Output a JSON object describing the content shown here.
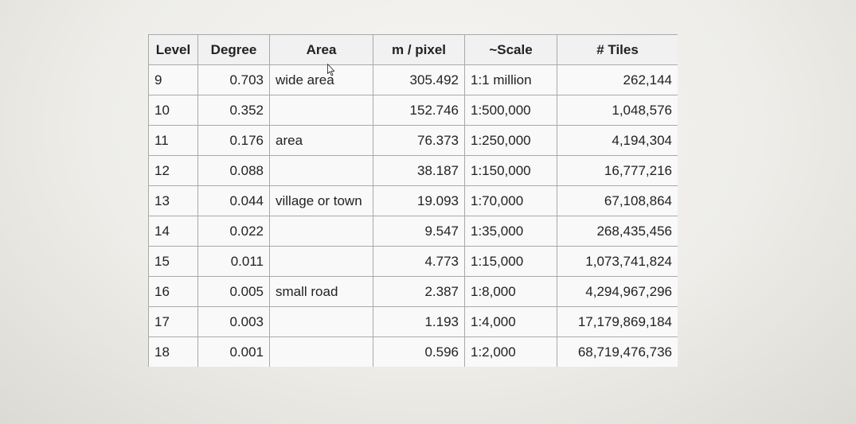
{
  "table": {
    "headers": {
      "level": "Level",
      "degree": "Degree",
      "area": "Area",
      "m_per_pixel": "m / pixel",
      "scale": "~Scale",
      "tiles": "# Tiles"
    },
    "rows": [
      {
        "level": "9",
        "degree": "0.703",
        "area": "wide area",
        "m_per_pixel": "305.492",
        "scale": "1:1 million",
        "tiles": "262,144"
      },
      {
        "level": "10",
        "degree": "0.352",
        "area": "",
        "m_per_pixel": "152.746",
        "scale": "1:500,000",
        "tiles": "1,048,576"
      },
      {
        "level": "11",
        "degree": "0.176",
        "area": "area",
        "m_per_pixel": "76.373",
        "scale": "1:250,000",
        "tiles": "4,194,304"
      },
      {
        "level": "12",
        "degree": "0.088",
        "area": "",
        "m_per_pixel": "38.187",
        "scale": "1:150,000",
        "tiles": "16,777,216"
      },
      {
        "level": "13",
        "degree": "0.044",
        "area": "village or town",
        "m_per_pixel": "19.093",
        "scale": "1:70,000",
        "tiles": "67,108,864"
      },
      {
        "level": "14",
        "degree": "0.022",
        "area": "",
        "m_per_pixel": "9.547",
        "scale": "1:35,000",
        "tiles": "268,435,456"
      },
      {
        "level": "15",
        "degree": "0.011",
        "area": "",
        "m_per_pixel": "4.773",
        "scale": "1:15,000",
        "tiles": "1,073,741,824"
      },
      {
        "level": "16",
        "degree": "0.005",
        "area": "small road",
        "m_per_pixel": "2.387",
        "scale": "1:8,000",
        "tiles": "4,294,967,296"
      },
      {
        "level": "17",
        "degree": "0.003",
        "area": "",
        "m_per_pixel": "1.193",
        "scale": "1:4,000",
        "tiles": "17,179,869,184"
      },
      {
        "level": "18",
        "degree": "0.001",
        "area": "",
        "m_per_pixel": "0.596",
        "scale": "1:2,000",
        "tiles": "68,719,476,736"
      }
    ]
  },
  "cursor": {
    "icon": "mouse-pointer-icon"
  }
}
